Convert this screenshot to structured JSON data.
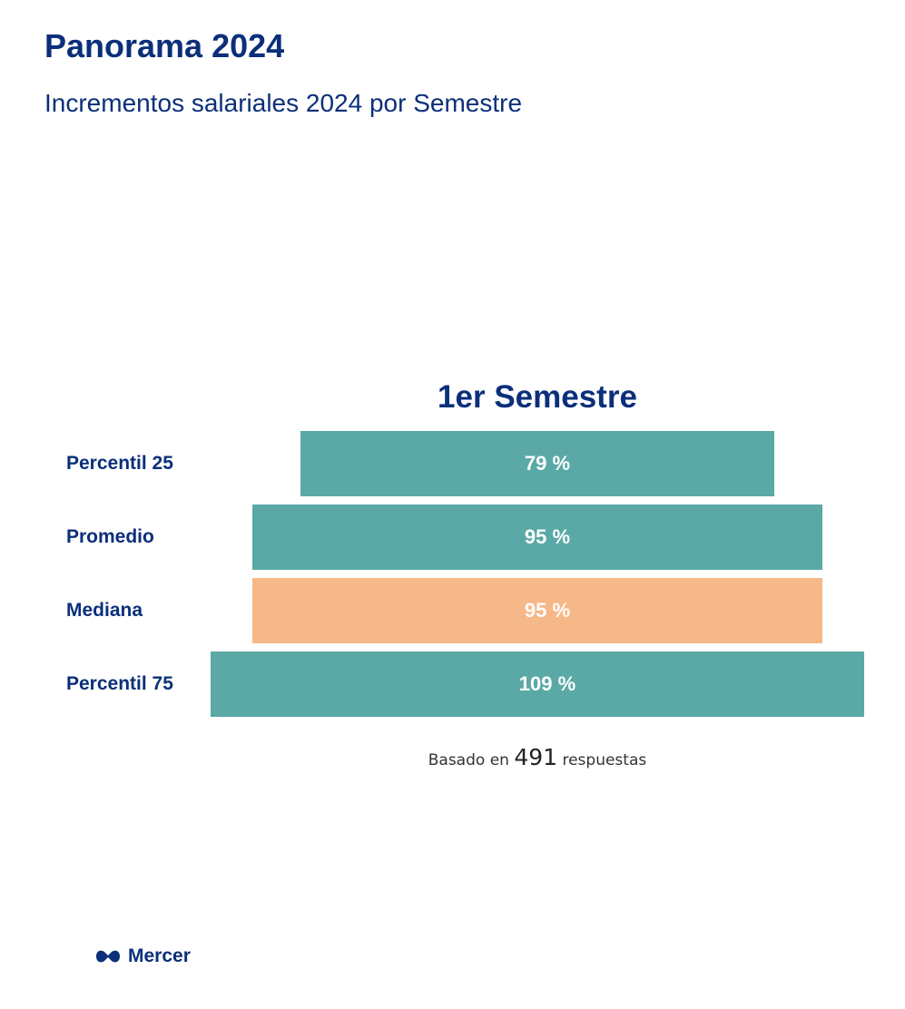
{
  "header": {
    "title": "Panorama 2024",
    "subtitle": "Incrementos salariales 2024 por Semestre"
  },
  "colors": {
    "teal": "#5aa9a7",
    "orange": "#f7b889",
    "navy": "#0b2f7a"
  },
  "chart_data": {
    "type": "bar",
    "orientation": "horizontal",
    "title": "1er Semestre",
    "categories": [
      "Percentil 25",
      "Promedio",
      "Mediana",
      "Percentil 75"
    ],
    "values": [
      79,
      95,
      95,
      109
    ],
    "value_labels": [
      "79 %",
      "95 %",
      "95 %",
      "109 %"
    ],
    "bar_colors": [
      "#5aa9a7",
      "#5aa9a7",
      "#f7b889",
      "#5aa9a7"
    ],
    "alignment": "centered",
    "xlim": [
      0,
      109
    ]
  },
  "footnote": {
    "prefix": "Basado en",
    "count": "491",
    "suffix": "respuestas"
  },
  "logo": {
    "text": "Mercer",
    "icon": "mercer-logo-icon"
  }
}
